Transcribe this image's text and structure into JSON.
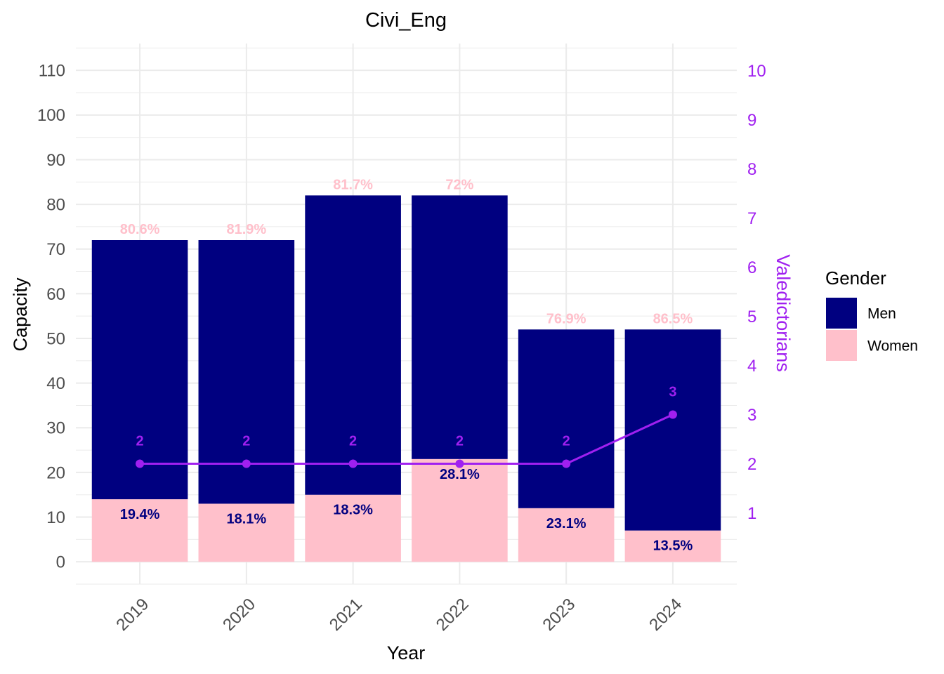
{
  "chart_data": {
    "type": "bar",
    "title": "Civi_Eng",
    "xlabel": "Year",
    "ylabel": "Capacity",
    "y2label": "Valedictorians",
    "categories": [
      "2019",
      "2020",
      "2021",
      "2022",
      "2023",
      "2024"
    ],
    "ylim": [
      -5,
      116
    ],
    "y2lim": [
      -0.45,
      10.55
    ],
    "yticks": [
      0,
      10,
      20,
      30,
      40,
      50,
      60,
      70,
      80,
      90,
      100,
      110
    ],
    "y2ticks": [
      1,
      2,
      3,
      4,
      5,
      6,
      7,
      8,
      9,
      10
    ],
    "stacked": true,
    "grid": true,
    "legend_position": "right",
    "legend_title": "Gender",
    "series": [
      {
        "name": "Men",
        "color": "#000080",
        "values": [
          58,
          59,
          67,
          59,
          40,
          45
        ],
        "labels": [
          "80.6%",
          "81.9%",
          "81.7%",
          "72%",
          "76.9%",
          "86.5%"
        ]
      },
      {
        "name": "Women",
        "color": "#ffc0cb",
        "values": [
          14,
          13,
          15,
          23,
          12,
          7
        ],
        "labels": [
          "19.4%",
          "18.1%",
          "18.3%",
          "28.1%",
          "23.1%",
          "13.5%"
        ]
      }
    ],
    "line_series": {
      "color": "#a020f0",
      "axis": "secondary",
      "values": [
        2,
        2,
        2,
        2,
        2,
        3
      ],
      "labels": [
        "2",
        "2",
        "2",
        "2",
        "2",
        "3"
      ]
    }
  }
}
